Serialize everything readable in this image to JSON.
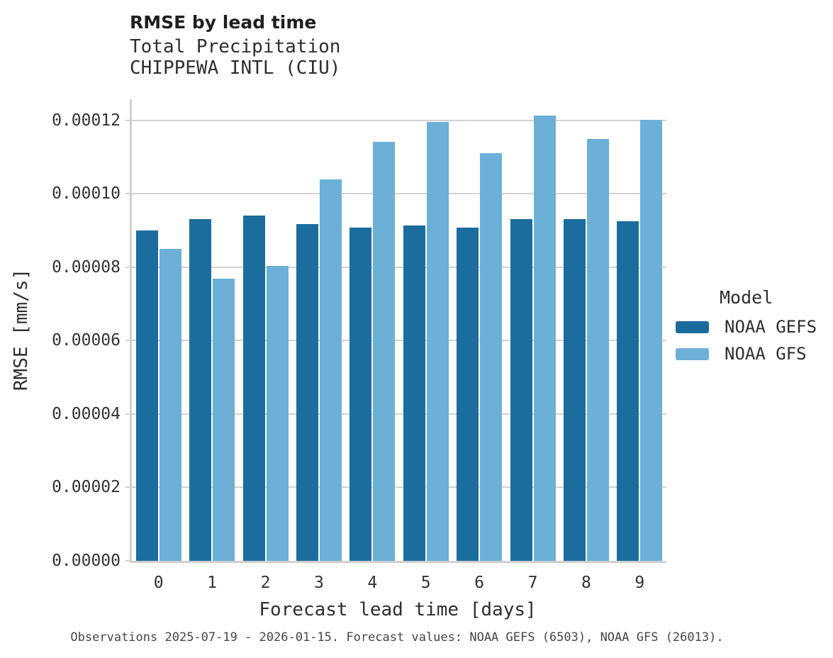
{
  "header": {
    "title": "RMSE by lead time",
    "subtitle": "Total Precipitation",
    "station": "CHIPPEWA INTL (CIU)"
  },
  "chart_data": {
    "type": "bar",
    "title": "RMSE by lead time",
    "subtitle": "Total Precipitation",
    "station": "CHIPPEWA INTL (CIU)",
    "xlabel": "Forecast lead time [days]",
    "ylabel": "RMSE [mm/s]",
    "categories": [
      "0",
      "1",
      "2",
      "3",
      "4",
      "5",
      "6",
      "7",
      "8",
      "9"
    ],
    "series": [
      {
        "name": "NOAA GEFS",
        "color": "#1b6d9e",
        "values": [
          9e-05,
          9.31e-05,
          9.4e-05,
          9.18e-05,
          9.07e-05,
          9.14e-05,
          9.07e-05,
          9.31e-05,
          9.3e-05,
          9.24e-05
        ]
      },
      {
        "name": "NOAA GFS",
        "color": "#6cb0d8",
        "values": [
          8.5e-05,
          7.68e-05,
          8.03e-05,
          0.0001038,
          0.0001142,
          0.0001196,
          0.0001111,
          0.0001212,
          0.0001149,
          0.0001201
        ]
      }
    ],
    "ylim": [
      0,
      0.0001257
    ],
    "ytick_step": 2e-05,
    "ytick_labels": [
      "0.00000",
      "0.00002",
      "0.00004",
      "0.00006",
      "0.00008",
      "0.00010",
      "0.00012"
    ],
    "grid": "horizontal",
    "legend_title": "Model",
    "legend_position": "right-center"
  },
  "legend": {
    "title": "Model",
    "entries": [
      {
        "label": "NOAA GEFS",
        "color": "#1b6d9e"
      },
      {
        "label": "NOAA GFS",
        "color": "#6cb0d8"
      }
    ]
  },
  "footer": {
    "caption": "Observations 2025-07-19 - 2026-01-15. Forecast values: NOAA GEFS (6503), NOAA GFS (26013)."
  },
  "colors": {
    "grid": "#d2d2d2",
    "spine": "#d0d0d0",
    "tick_text": "#333333",
    "axis_text": "#2e2e2e",
    "title_text": "#1f1f1f",
    "caption_text": "#454545",
    "background": "#ffffff"
  }
}
